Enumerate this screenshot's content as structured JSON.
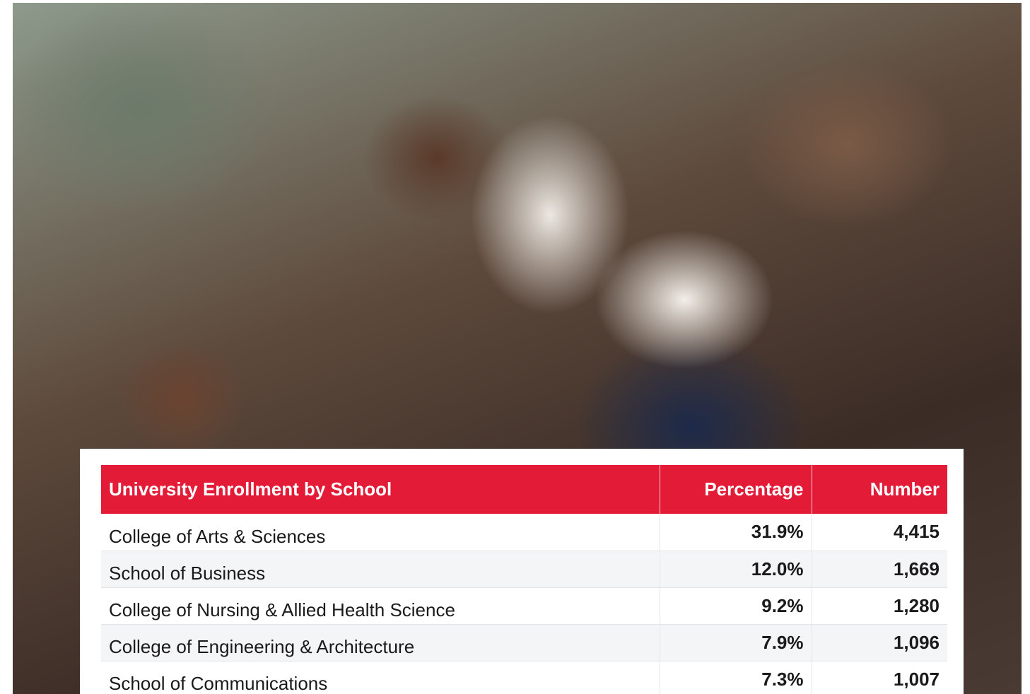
{
  "table": {
    "headers": [
      "University Enrollment by School",
      "Percentage",
      "Number"
    ],
    "rows": [
      [
        "College of Arts & Sciences",
        "31.9%",
        "4,415"
      ],
      [
        "School of Business",
        "12.0%",
        "1,669"
      ],
      [
        "College of Nursing & Allied Health Science",
        "9.2%",
        "1,280"
      ],
      [
        "College of Engineering & Architecture",
        "7.9%",
        "1,096"
      ],
      [
        "School of Communications",
        "7.3%",
        "1,007"
      ]
    ]
  }
}
